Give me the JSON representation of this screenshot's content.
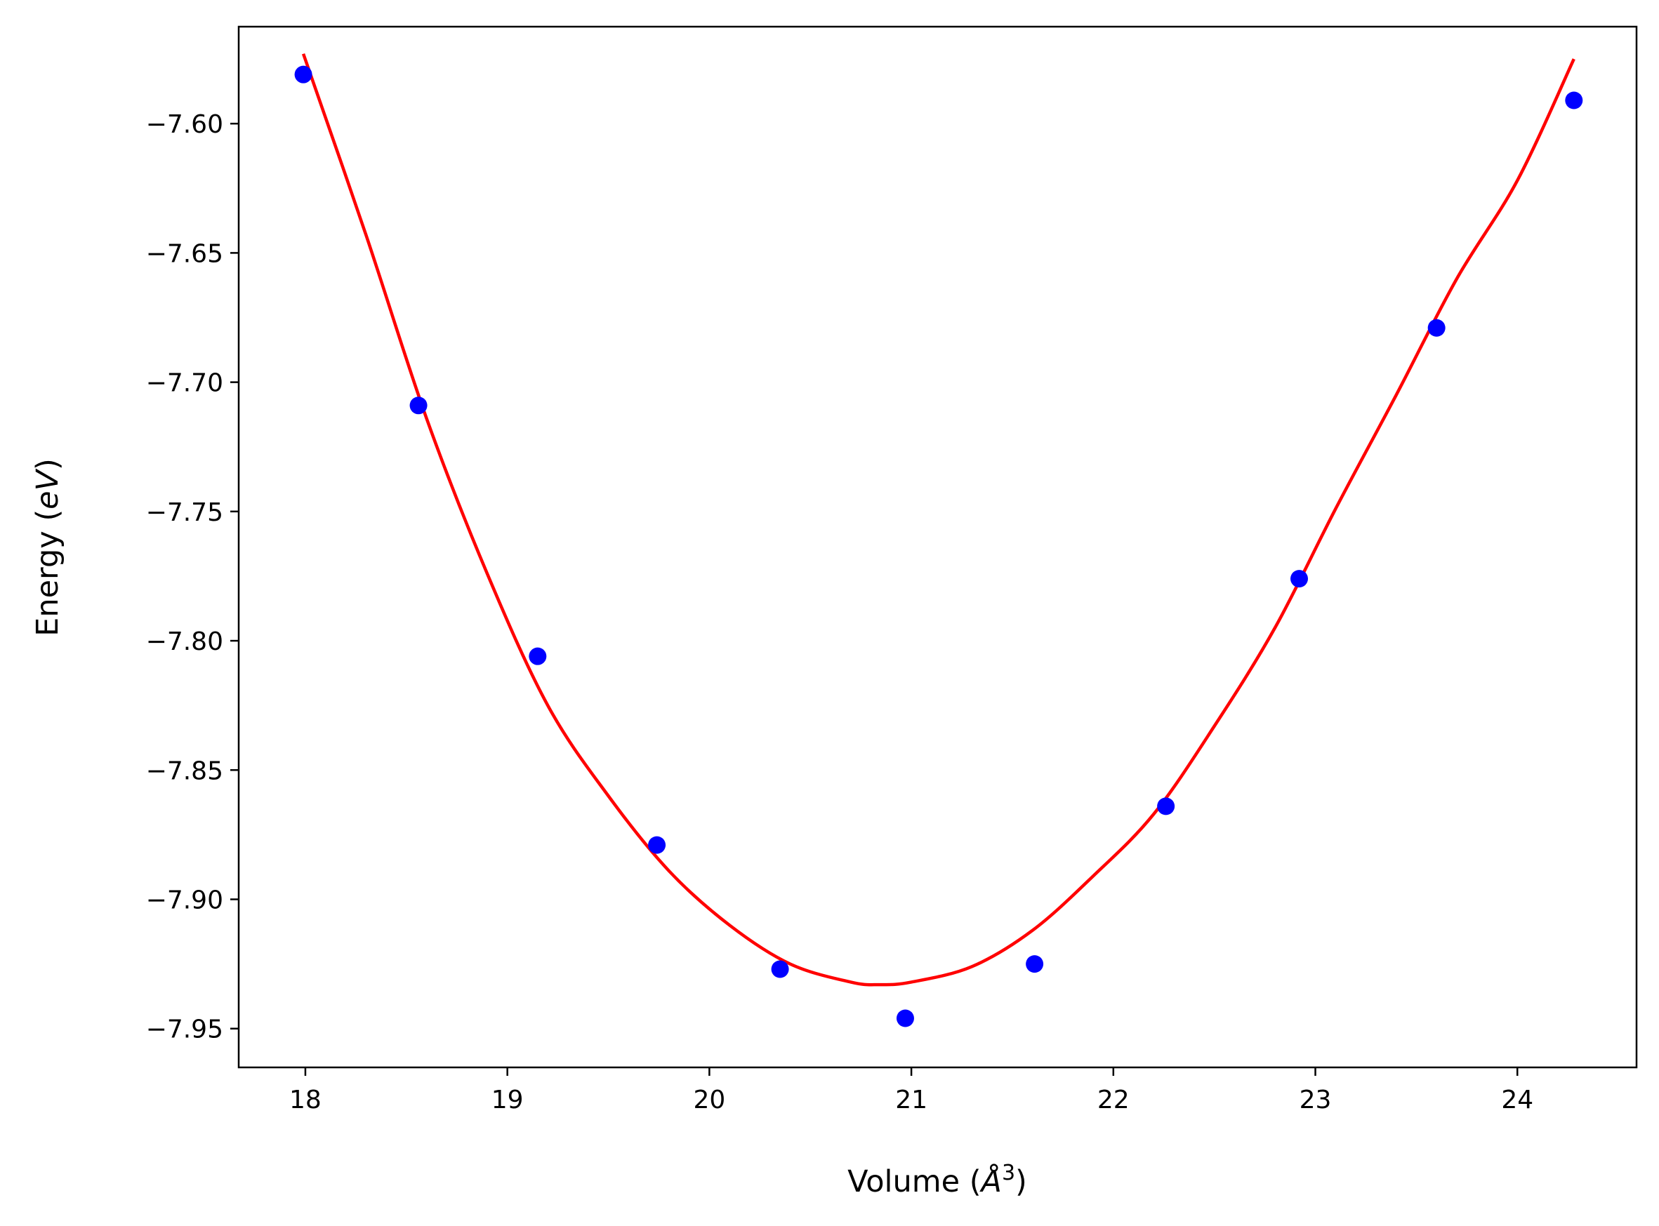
{
  "chart_data": {
    "type": "scatter",
    "xlabel": {
      "prefix": "Volume (",
      "unit": "Å",
      "exponent": "3",
      "suffix": ")"
    },
    "ylabel": {
      "prefix": "Energy (",
      "unit": "eV",
      "suffix": ")"
    },
    "xlim": [
      17.67,
      24.59
    ],
    "ylim": [
      -7.965,
      -7.5625
    ],
    "xticks": [
      18,
      19,
      20,
      21,
      22,
      23,
      24
    ],
    "xtick_labels": [
      "18",
      "19",
      "20",
      "21",
      "22",
      "23",
      "24"
    ],
    "yticks": [
      -7.6,
      -7.65,
      -7.7,
      -7.75,
      -7.8,
      -7.85,
      -7.9,
      -7.95
    ],
    "ytick_labels": [
      "−7.60",
      "−7.65",
      "−7.70",
      "−7.75",
      "−7.80",
      "−7.85",
      "−7.90",
      "−7.95"
    ],
    "grid": false,
    "series": [
      {
        "kind": "points",
        "color": "#0000ff",
        "points": [
          {
            "x": 17.99,
            "y": -7.581
          },
          {
            "x": 18.56,
            "y": -7.709
          },
          {
            "x": 19.15,
            "y": -7.806
          },
          {
            "x": 19.74,
            "y": -7.879
          },
          {
            "x": 20.35,
            "y": -7.927
          },
          {
            "x": 20.97,
            "y": -7.946
          },
          {
            "x": 21.61,
            "y": -7.925
          },
          {
            "x": 22.26,
            "y": -7.864
          },
          {
            "x": 22.92,
            "y": -7.776
          },
          {
            "x": 23.6,
            "y": -7.679
          },
          {
            "x": 24.28,
            "y": -7.591
          }
        ]
      },
      {
        "kind": "fit-curve",
        "color": "#ff0000",
        "points": [
          {
            "x": 17.99,
            "y": -7.573
          },
          {
            "x": 18.3,
            "y": -7.643
          },
          {
            "x": 18.6,
            "y": -7.714
          },
          {
            "x": 18.9,
            "y": -7.774
          },
          {
            "x": 19.2,
            "y": -7.825
          },
          {
            "x": 19.5,
            "y": -7.86
          },
          {
            "x": 19.8,
            "y": -7.889
          },
          {
            "x": 20.1,
            "y": -7.91
          },
          {
            "x": 20.4,
            "y": -7.925
          },
          {
            "x": 20.7,
            "y": -7.932
          },
          {
            "x": 20.84,
            "y": -7.933
          },
          {
            "x": 21.0,
            "y": -7.932
          },
          {
            "x": 21.3,
            "y": -7.926
          },
          {
            "x": 21.6,
            "y": -7.912
          },
          {
            "x": 21.9,
            "y": -7.891
          },
          {
            "x": 22.2,
            "y": -7.867
          },
          {
            "x": 22.5,
            "y": -7.833
          },
          {
            "x": 22.8,
            "y": -7.795
          },
          {
            "x": 23.1,
            "y": -7.749
          },
          {
            "x": 23.4,
            "y": -7.705
          },
          {
            "x": 23.7,
            "y": -7.66
          },
          {
            "x": 24.0,
            "y": -7.622
          },
          {
            "x": 24.28,
            "y": -7.575
          }
        ]
      }
    ]
  }
}
